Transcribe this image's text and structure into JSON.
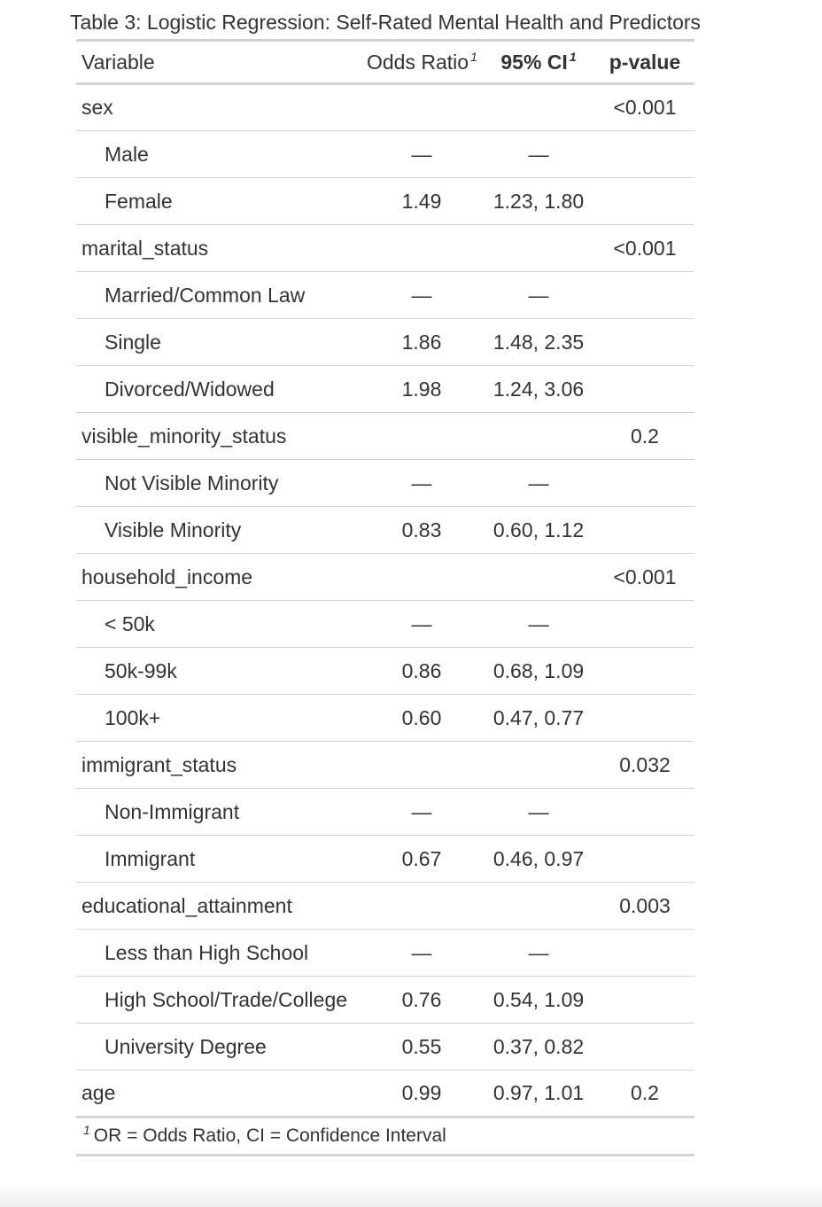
{
  "caption": "Table 3: Logistic Regression: Self-Rated Mental Health and Predictors",
  "columns": {
    "variable": "Variable",
    "odds_ratio": "Odds Ratio",
    "ci": "95% CI",
    "pvalue": "p-value",
    "footnote_mark": "1"
  },
  "rows": [
    {
      "label": "sex",
      "or": "",
      "ci": "",
      "p": "<0.001",
      "level": false
    },
    {
      "label": "Male",
      "or": "—",
      "ci": "—",
      "p": "",
      "level": true
    },
    {
      "label": "Female",
      "or": "1.49",
      "ci": "1.23, 1.80",
      "p": "",
      "level": true
    },
    {
      "label": "marital_status",
      "or": "",
      "ci": "",
      "p": "<0.001",
      "level": false
    },
    {
      "label": "Married/Common Law",
      "or": "—",
      "ci": "—",
      "p": "",
      "level": true
    },
    {
      "label": "Single",
      "or": "1.86",
      "ci": "1.48, 2.35",
      "p": "",
      "level": true
    },
    {
      "label": "Divorced/Widowed",
      "or": "1.98",
      "ci": "1.24, 3.06",
      "p": "",
      "level": true
    },
    {
      "label": "visible_minority_status",
      "or": "",
      "ci": "",
      "p": "0.2",
      "level": false
    },
    {
      "label": "Not Visible Minority",
      "or": "—",
      "ci": "—",
      "p": "",
      "level": true
    },
    {
      "label": "Visible Minority",
      "or": "0.83",
      "ci": "0.60, 1.12",
      "p": "",
      "level": true
    },
    {
      "label": "household_income",
      "or": "",
      "ci": "",
      "p": "<0.001",
      "level": false
    },
    {
      "label": "< 50k",
      "or": "—",
      "ci": "—",
      "p": "",
      "level": true
    },
    {
      "label": "50k-99k",
      "or": "0.86",
      "ci": "0.68, 1.09",
      "p": "",
      "level": true
    },
    {
      "label": "100k+",
      "or": "0.60",
      "ci": "0.47, 0.77",
      "p": "",
      "level": true
    },
    {
      "label": "immigrant_status",
      "or": "",
      "ci": "",
      "p": "0.032",
      "level": false
    },
    {
      "label": "Non-Immigrant",
      "or": "—",
      "ci": "—",
      "p": "",
      "level": true
    },
    {
      "label": "Immigrant",
      "or": "0.67",
      "ci": "0.46, 0.97",
      "p": "",
      "level": true
    },
    {
      "label": "educational_attainment",
      "or": "",
      "ci": "",
      "p": "0.003",
      "level": false
    },
    {
      "label": "Less than High School",
      "or": "—",
      "ci": "—",
      "p": "",
      "level": true
    },
    {
      "label": "High School/Trade/College",
      "or": "0.76",
      "ci": "0.54, 1.09",
      "p": "",
      "level": true
    },
    {
      "label": "University Degree",
      "or": "0.55",
      "ci": "0.37, 0.82",
      "p": "",
      "level": true
    },
    {
      "label": "age",
      "or": "0.99",
      "ci": "0.97, 1.01",
      "p": "0.2",
      "level": false
    }
  ],
  "footnote": {
    "mark": "1",
    "text": "OR = Odds Ratio, CI = Confidence Interval"
  }
}
